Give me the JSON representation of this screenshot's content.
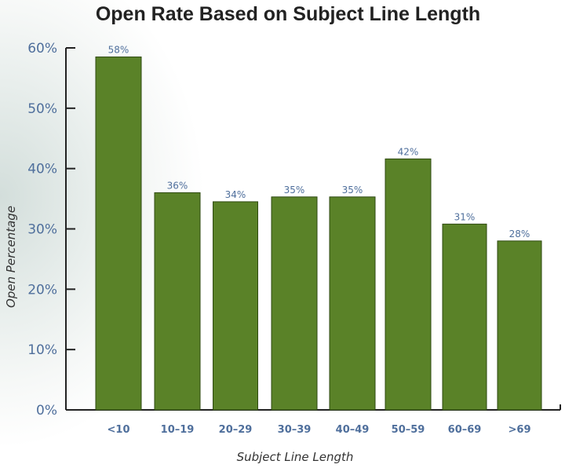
{
  "chart_data": {
    "type": "bar",
    "title": "Open Rate Based on Subject Line Length",
    "xlabel": "Subject Line Length",
    "ylabel": "Open Percentage",
    "categories": [
      "<10",
      "10–19",
      "20–29",
      "30–39",
      "40–49",
      "50–59",
      "60–69",
      ">69"
    ],
    "values": [
      58.5,
      36,
      34.5,
      35.3,
      35.3,
      41.6,
      30.8,
      28
    ],
    "data_labels": [
      "58%",
      "36%",
      "34%",
      "35%",
      "35%",
      "42%",
      "31%",
      "28%"
    ],
    "yticks": [
      0,
      10,
      20,
      30,
      40,
      50,
      60
    ],
    "ytick_labels": [
      "0%",
      "10%",
      "20%",
      "30%",
      "40%",
      "50%",
      "60%"
    ],
    "ylim": [
      0,
      60
    ],
    "grid": false,
    "legend": "none",
    "colors": {
      "bar": "#5a8228",
      "bar_edge": "#2f4a12",
      "label_text": "#4f6f9c",
      "axis": "#222222"
    }
  }
}
